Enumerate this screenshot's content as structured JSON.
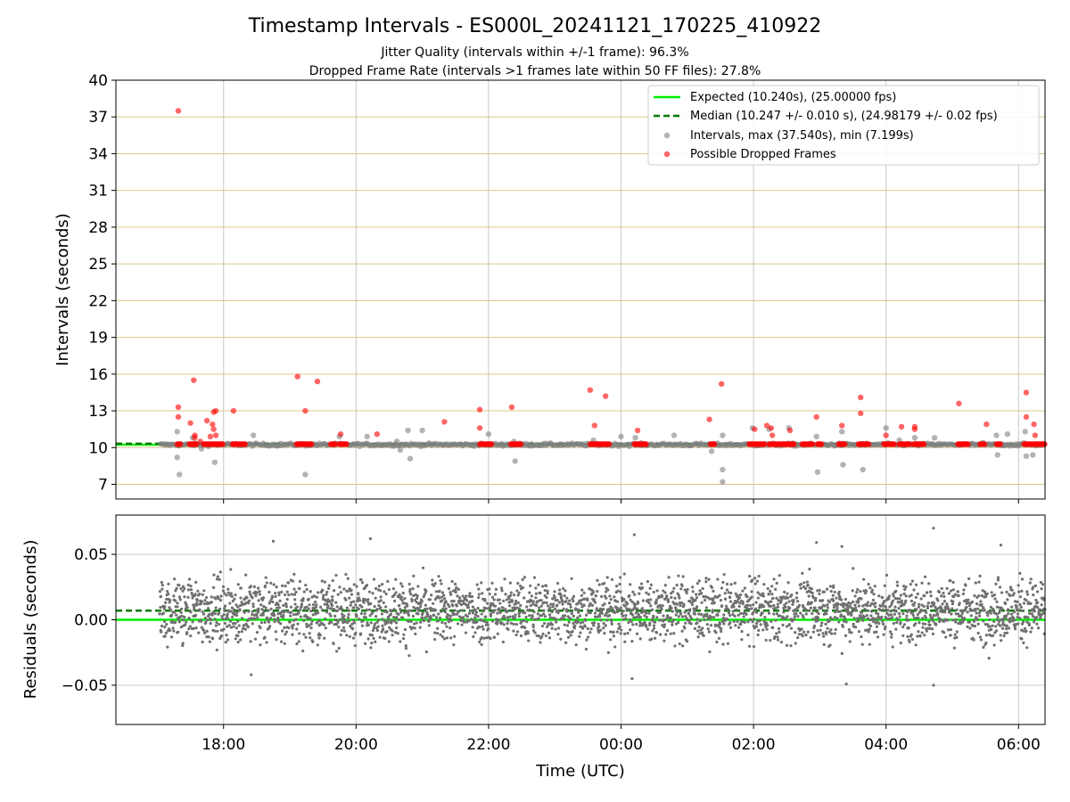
{
  "chart_data": [
    {
      "type": "scatter",
      "title": "Timestamp Intervals - ES000L_20241121_170225_410922",
      "subtitle_1": "Jitter Quality (intervals within +/-1 frame): 96.3%",
      "subtitle_2": "Dropped Frame Rate (intervals >1 frames late within 50 FF files): 27.8%",
      "xlabel": "",
      "ylabel": "Intervals (seconds)",
      "ylim": [
        5.8,
        40
      ],
      "y_ticks": [
        7,
        10,
        13,
        16,
        19,
        22,
        25,
        28,
        31,
        34,
        37,
        40
      ],
      "y_tick_labels": [
        "7",
        "10",
        "13",
        "16",
        "19",
        "22",
        "25",
        "28",
        "31",
        "34",
        "37",
        "40"
      ],
      "xlim_hours": [
        16.375,
        30.4
      ],
      "x_ticks_hours": [
        18,
        20,
        22,
        24,
        26,
        28,
        30
      ],
      "grid": true,
      "legend_position": "top-right",
      "legend": [
        {
          "label": "Expected (10.240s), (25.00000 fps)",
          "kind": "solid-line",
          "color": "#00ee00"
        },
        {
          "label": "Median (10.247 +/- 0.010 s), (24.98179 +/- 0.02 fps)",
          "kind": "dashed-line",
          "color": "#007a00"
        },
        {
          "label": "Intervals, max (37.540s), min (7.199s)",
          "kind": "marker",
          "color": "#808080"
        },
        {
          "label": "Possible Dropped Frames",
          "kind": "marker",
          "color": "#ff0000"
        }
      ],
      "expected_value": 10.24,
      "median_value": 10.247,
      "series": [
        {
          "name": "Intervals, max (37.540s), min (7.199s)",
          "color": "#808080",
          "points": [
            {
              "t": "17:18",
              "y": 11.3
            },
            {
              "t": "17:18",
              "y": 9.2
            },
            {
              "t": "17:20",
              "y": 7.8
            },
            {
              "t": "17:32",
              "y": 10.8
            },
            {
              "t": "17:40",
              "y": 9.9
            },
            {
              "t": "17:52",
              "y": 8.8
            },
            {
              "t": "18:27",
              "y": 11.0
            },
            {
              "t": "19:14",
              "y": 7.8
            },
            {
              "t": "19:45",
              "y": 10.9
            },
            {
              "t": "20:10",
              "y": 10.9
            },
            {
              "t": "20:37",
              "y": 10.5
            },
            {
              "t": "20:40",
              "y": 9.8
            },
            {
              "t": "20:47",
              "y": 11.4
            },
            {
              "t": "20:49",
              "y": 9.1
            },
            {
              "t": "21:00",
              "y": 11.4
            },
            {
              "t": "22:00",
              "y": 11.1
            },
            {
              "t": "22:23",
              "y": 10.5
            },
            {
              "t": "22:24",
              "y": 8.9
            },
            {
              "t": "23:35",
              "y": 10.6
            },
            {
              "t": "00:00",
              "y": 10.9
            },
            {
              "t": "00:13",
              "y": 10.8
            },
            {
              "t": "00:48",
              "y": 11.0
            },
            {
              "t": "01:22",
              "y": 9.7
            },
            {
              "t": "01:32",
              "y": 11.0
            },
            {
              "t": "01:32",
              "y": 8.2
            },
            {
              "t": "01:32",
              "y": 7.2
            },
            {
              "t": "01:59",
              "y": 11.6
            },
            {
              "t": "02:14",
              "y": 11.5
            },
            {
              "t": "02:32",
              "y": 11.6
            },
            {
              "t": "02:57",
              "y": 10.9
            },
            {
              "t": "02:58",
              "y": 8.0
            },
            {
              "t": "03:20",
              "y": 11.3
            },
            {
              "t": "03:21",
              "y": 8.6
            },
            {
              "t": "03:39",
              "y": 8.2
            },
            {
              "t": "04:00",
              "y": 11.6
            },
            {
              "t": "04:12",
              "y": 10.6
            },
            {
              "t": "04:26",
              "y": 10.8
            },
            {
              "t": "04:44",
              "y": 10.8
            },
            {
              "t": "05:28",
              "y": 10.4
            },
            {
              "t": "05:40",
              "y": 11.0
            },
            {
              "t": "05:41",
              "y": 9.4
            },
            {
              "t": "05:50",
              "y": 11.1
            },
            {
              "t": "06:06",
              "y": 11.3
            },
            {
              "t": "06:07",
              "y": 9.3
            },
            {
              "t": "06:13",
              "y": 9.4
            }
          ]
        },
        {
          "name": "Possible Dropped Frames",
          "color": "#ff0000",
          "points": [
            {
              "t": "17:19",
              "y": 37.5
            },
            {
              "t": "17:19",
              "y": 13.3
            },
            {
              "t": "17:19",
              "y": 12.5
            },
            {
              "t": "17:30",
              "y": 12.0
            },
            {
              "t": "17:33",
              "y": 15.5
            },
            {
              "t": "17:34",
              "y": 11.0
            },
            {
              "t": "17:34",
              "y": 10.8
            },
            {
              "t": "17:39",
              "y": 10.5
            },
            {
              "t": "17:45",
              "y": 12.2
            },
            {
              "t": "17:48",
              "y": 10.9
            },
            {
              "t": "17:50",
              "y": 11.9
            },
            {
              "t": "17:51",
              "y": 11.5
            },
            {
              "t": "17:51",
              "y": 12.9
            },
            {
              "t": "17:53",
              "y": 13.0
            },
            {
              "t": "17:53",
              "y": 11.0
            },
            {
              "t": "18:09",
              "y": 13.0
            },
            {
              "t": "19:07",
              "y": 15.8
            },
            {
              "t": "19:14",
              "y": 13.0
            },
            {
              "t": "19:25",
              "y": 15.4
            },
            {
              "t": "19:46",
              "y": 11.1
            },
            {
              "t": "20:19",
              "y": 11.1
            },
            {
              "t": "21:20",
              "y": 12.1
            },
            {
              "t": "21:52",
              "y": 13.1
            },
            {
              "t": "21:52",
              "y": 11.6
            },
            {
              "t": "22:21",
              "y": 13.3
            },
            {
              "t": "23:32",
              "y": 14.7
            },
            {
              "t": "23:36",
              "y": 11.8
            },
            {
              "t": "23:46",
              "y": 14.2
            },
            {
              "t": "00:15",
              "y": 11.4
            },
            {
              "t": "01:20",
              "y": 12.3
            },
            {
              "t": "01:31",
              "y": 15.2
            },
            {
              "t": "02:01",
              "y": 11.5
            },
            {
              "t": "02:12",
              "y": 11.8
            },
            {
              "t": "02:16",
              "y": 11.6
            },
            {
              "t": "02:17",
              "y": 11.0
            },
            {
              "t": "02:33",
              "y": 11.4
            },
            {
              "t": "02:57",
              "y": 12.5
            },
            {
              "t": "03:20",
              "y": 11.8
            },
            {
              "t": "03:37",
              "y": 14.1
            },
            {
              "t": "03:37",
              "y": 12.8
            },
            {
              "t": "04:00",
              "y": 11.0
            },
            {
              "t": "04:14",
              "y": 11.7
            },
            {
              "t": "04:26",
              "y": 11.7
            },
            {
              "t": "04:26",
              "y": 11.5
            },
            {
              "t": "05:06",
              "y": 13.6
            },
            {
              "t": "05:31",
              "y": 11.9
            },
            {
              "t": "06:07",
              "y": 14.5
            },
            {
              "t": "06:07",
              "y": 12.5
            },
            {
              "t": "06:14",
              "y": 11.9
            },
            {
              "t": "06:15",
              "y": 11.0
            }
          ]
        },
        {
          "name": "Possible Dropped Frames (clusters at 10.28 s)",
          "color": "#ff0000",
          "y": 10.28,
          "time_ranges": [
            [
              "17:18",
              "17:21"
            ],
            [
              "17:29",
              "17:36"
            ],
            [
              "17:42",
              "18:00"
            ],
            [
              "18:08",
              "18:20"
            ],
            [
              "19:06",
              "19:20"
            ],
            [
              "19:37",
              "19:42"
            ],
            [
              "19:45",
              "19:52"
            ],
            [
              "21:52",
              "22:03"
            ],
            [
              "22:20",
              "22:30"
            ],
            [
              "23:32",
              "23:50"
            ],
            [
              "00:12",
              "00:23"
            ],
            [
              "01:21",
              "01:25"
            ],
            [
              "01:56",
              "02:10"
            ],
            [
              "02:14",
              "02:30"
            ],
            [
              "02:31",
              "02:37"
            ],
            [
              "02:44",
              "02:54"
            ],
            [
              "02:58",
              "03:02"
            ],
            [
              "03:17",
              "03:23"
            ],
            [
              "03:35",
              "03:45"
            ],
            [
              "03:58",
              "04:08"
            ],
            [
              "04:12",
              "04:22"
            ],
            [
              "04:25",
              "04:35"
            ],
            [
              "05:05",
              "05:15"
            ],
            [
              "05:25",
              "05:30"
            ],
            [
              "05:40",
              "05:44"
            ],
            [
              "06:05",
              "06:24"
            ]
          ]
        }
      ]
    },
    {
      "type": "scatter",
      "xlabel": "Time (UTC)",
      "ylabel": "Residuals (seconds)",
      "ylim": [
        -0.08,
        0.08
      ],
      "y_ticks": [
        -0.05,
        0.0,
        0.05
      ],
      "y_tick_labels": [
        "−0.05",
        "0.00",
        "0.05"
      ],
      "xlim_hours": [
        16.375,
        30.4
      ],
      "x_ticks_hours": [
        18,
        20,
        22,
        24,
        26,
        28,
        30
      ],
      "x_tick_labels": [
        "18:00",
        "20:00",
        "22:00",
        "00:00",
        "02:00",
        "04:00",
        "06:00"
      ],
      "grid": true,
      "expected_value": 0.0,
      "median_value": 0.007,
      "series": [
        {
          "name": "Residuals",
          "color": "#707070",
          "start": "17:02",
          "end": "06:24",
          "count": 3000,
          "center": 0.007,
          "spread": 0.012,
          "notable_points": [
            {
              "t": "18:45",
              "y": 0.06
            },
            {
              "t": "20:13",
              "y": 0.062
            },
            {
              "t": "00:12",
              "y": 0.065
            },
            {
              "t": "00:10",
              "y": -0.045
            },
            {
              "t": "04:43",
              "y": 0.07
            },
            {
              "t": "04:43",
              "y": -0.05
            },
            {
              "t": "03:24",
              "y": -0.049
            },
            {
              "t": "18:25",
              "y": -0.042
            },
            {
              "t": "02:57",
              "y": 0.059
            },
            {
              "t": "03:20",
              "y": 0.056
            },
            {
              "t": "05:44",
              "y": 0.057
            }
          ]
        }
      ]
    }
  ]
}
